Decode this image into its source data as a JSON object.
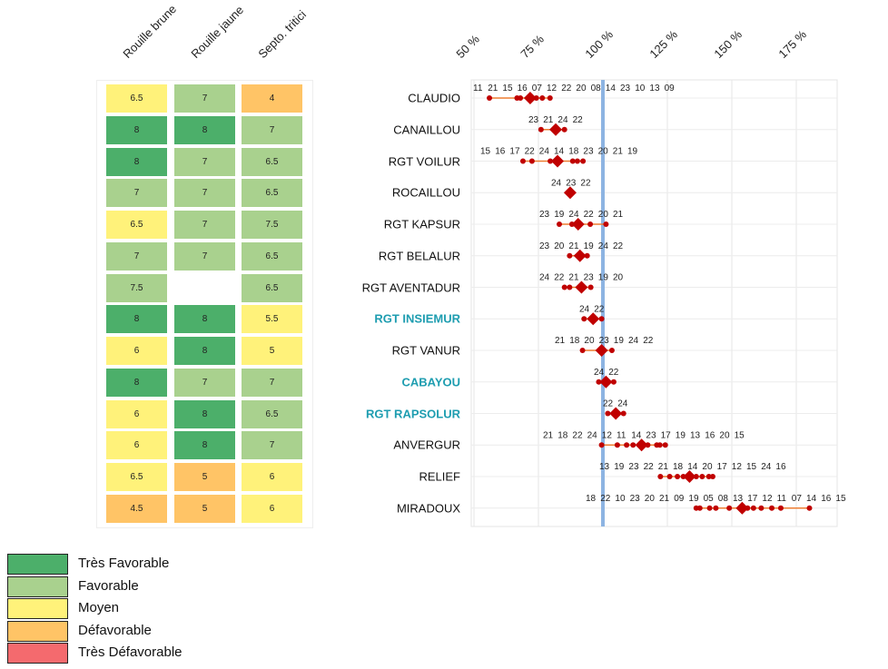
{
  "columns": [
    "Rouille brune",
    "Rouille jaune",
    "Septo. tritici"
  ],
  "colors": {
    "Très Favorable": "#4caf6a",
    "Favorable": "#a9d18e",
    "Moyen": "#fff27a",
    "Défavorable": "#ffc466",
    "Très Défavorable": "#f46a6e",
    "mean": "#c00000",
    "point": "#c00000",
    "range": "#ed7d31",
    "ref": "#8db4e2"
  },
  "legend": [
    "Très Favorable",
    "Favorable",
    "Moyen",
    "Défavorable",
    "Très Défavorable"
  ],
  "chart_data": {
    "type": "scatter",
    "xlabel": "",
    "ylabel": "",
    "xlim": [
      44,
      188
    ],
    "xticks": [
      50,
      75,
      100,
      125,
      150,
      175
    ],
    "xtick_labels": [
      "50 %",
      "75 %",
      "100 %",
      "125 %",
      "150 %",
      "175 %"
    ],
    "reference_line": 100,
    "rows": [
      {
        "name": "CLAUDIO",
        "highlight": false,
        "scores": [
          "6.5",
          "7",
          "4"
        ],
        "cats": [
          2,
          1,
          3
        ],
        "labels": [
          "11",
          "21",
          "15",
          "16",
          "07",
          "12",
          "22",
          "20",
          "08",
          "14",
          "23",
          "10",
          "13",
          "09"
        ],
        "points": [
          56,
          66.7,
          68,
          74.2,
          76.5,
          79.5
        ],
        "mean": 71.8
      },
      {
        "name": "CANAILLOU",
        "highlight": false,
        "scores": [
          "8",
          "8",
          "7"
        ],
        "cats": [
          0,
          0,
          1
        ],
        "labels": [
          "23",
          "21",
          "24",
          "22"
        ],
        "points": [
          76,
          85.1
        ],
        "mean": 81.7
      },
      {
        "name": "RGT VOILUR",
        "highlight": false,
        "scores": [
          "8",
          "7",
          "6.5"
        ],
        "cats": [
          0,
          1,
          1
        ],
        "labels": [
          "15",
          "16",
          "17",
          "22",
          "24",
          "14",
          "18",
          "23",
          "20",
          "21",
          "19"
        ],
        "points": [
          69,
          72.5,
          79.6,
          88.3,
          90.1,
          92.3
        ],
        "mean": 82.4
      },
      {
        "name": "ROCAILLOU",
        "highlight": false,
        "scores": [
          "7",
          "7",
          "6.5"
        ],
        "cats": [
          1,
          1,
          1
        ],
        "labels": [
          "24",
          "23",
          "22"
        ],
        "points": [],
        "mean": 87.3
      },
      {
        "name": "RGT KAPSUR",
        "highlight": false,
        "scores": [
          "6.5",
          "7",
          "7.5"
        ],
        "cats": [
          2,
          1,
          1
        ],
        "labels": [
          "23",
          "19",
          "24",
          "22",
          "20",
          "21"
        ],
        "points": [
          83.1,
          88,
          95.1,
          101.2
        ],
        "mean": 90.4
      },
      {
        "name": "RGT BELALUR",
        "highlight": false,
        "scores": [
          "7",
          "7",
          "6.5"
        ],
        "cats": [
          1,
          1,
          1
        ],
        "labels": [
          "23",
          "20",
          "21",
          "19",
          "24",
          "22"
        ],
        "points": [
          87.1,
          93.9
        ],
        "mean": 91.1
      },
      {
        "name": "RGT AVENTADUR",
        "highlight": false,
        "scores": [
          "7.5",
          "",
          "6.5"
        ],
        "cats": [
          1,
          -1,
          1
        ],
        "labels": [
          "24",
          "22",
          "21",
          "23",
          "19",
          "20"
        ],
        "points": [
          85.1,
          87.1,
          95.3
        ],
        "mean": 91.7
      },
      {
        "name": "RGT INSIEMUR",
        "highlight": true,
        "scores": [
          "8",
          "8",
          "5.5"
        ],
        "cats": [
          0,
          0,
          2
        ],
        "labels": [
          "24",
          "22"
        ],
        "points": [
          92.7,
          99.5
        ],
        "mean": 96.2
      },
      {
        "name": "RGT VANUR",
        "highlight": false,
        "scores": [
          "6",
          "8",
          "5"
        ],
        "cats": [
          2,
          0,
          2
        ],
        "labels": [
          "21",
          "18",
          "20",
          "23",
          "19",
          "24",
          "22"
        ],
        "points": [
          92.1,
          103.5
        ],
        "mean": 99.5
      },
      {
        "name": "CABAYOU",
        "highlight": true,
        "scores": [
          "8",
          "7",
          "7"
        ],
        "cats": [
          0,
          1,
          1
        ],
        "labels": [
          "24",
          "22"
        ],
        "points": [
          98.4,
          104.2
        ],
        "mean": 101.2
      },
      {
        "name": "RGT RAPSOLUR",
        "highlight": true,
        "scores": [
          "6",
          "8",
          "6.5"
        ],
        "cats": [
          2,
          0,
          1
        ],
        "labels": [
          "22",
          "24"
        ],
        "points": [
          101.9,
          108
        ],
        "mean": 105
      },
      {
        "name": "ANVERGUR",
        "highlight": false,
        "scores": [
          "6",
          "8",
          "7"
        ],
        "cats": [
          2,
          0,
          1
        ],
        "labels": [
          "21",
          "18",
          "22",
          "24",
          "12",
          "11",
          "14",
          "23",
          "17",
          "19",
          "13",
          "16",
          "20",
          "15"
        ],
        "points": [
          99.5,
          105.6,
          109.2,
          111.7,
          117.4,
          120.9,
          122.1,
          124.2
        ],
        "mean": 115
      },
      {
        "name": "RELIEF",
        "highlight": false,
        "scores": [
          "6.5",
          "5",
          "6"
        ],
        "cats": [
          2,
          3,
          2
        ],
        "labels": [
          "13",
          "19",
          "23",
          "22",
          "21",
          "18",
          "14",
          "20",
          "17",
          "12",
          "15",
          "24",
          "16"
        ],
        "points": [
          122.3,
          125.9,
          128.9,
          131.2,
          136.2,
          138.5,
          141.1,
          142.6
        ],
        "mean": 133.6
      },
      {
        "name": "MIRADOUX",
        "highlight": false,
        "scores": [
          "4.5",
          "5",
          "6"
        ],
        "cats": [
          3,
          3,
          2
        ],
        "labels": [
          "18",
          "22",
          "10",
          "23",
          "20",
          "21",
          "09",
          "19",
          "05",
          "08",
          "13",
          "17",
          "12",
          "11",
          "07",
          "14",
          "16",
          "15"
        ],
        "points": [
          136.2,
          137.6,
          141.4,
          143.8,
          149,
          156.1,
          158.4,
          161.4,
          165.5,
          169,
          180.1
        ],
        "mean": 154
      }
    ]
  }
}
